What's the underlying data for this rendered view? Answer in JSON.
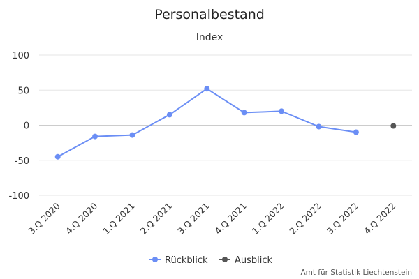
{
  "chart_data": {
    "type": "line",
    "title": "Personalbestand",
    "subtitle": "Index",
    "categories": [
      "3.Q 2020",
      "4.Q 2020",
      "1.Q 2021",
      "2.Q 2021",
      "3.Q 2021",
      "4.Q 2021",
      "1.Q 2022",
      "2.Q 2022",
      "3.Q 2022",
      "4.Q 2022"
    ],
    "ylim": [
      -100,
      100
    ],
    "yticks": [
      100,
      50,
      0,
      -50,
      -100
    ],
    "grid": true,
    "legend_position": "bottom-center",
    "series": [
      {
        "name": "Rückblick",
        "color": "#6b8ef5",
        "values": [
          -45,
          -16,
          -14,
          15,
          52,
          18,
          20,
          -2,
          -10,
          null
        ]
      },
      {
        "name": "Ausblick",
        "color": "#555555",
        "values": [
          null,
          null,
          null,
          null,
          null,
          null,
          null,
          null,
          null,
          -1
        ]
      }
    ],
    "credit": "Amt für Statistik Liechtenstein"
  }
}
